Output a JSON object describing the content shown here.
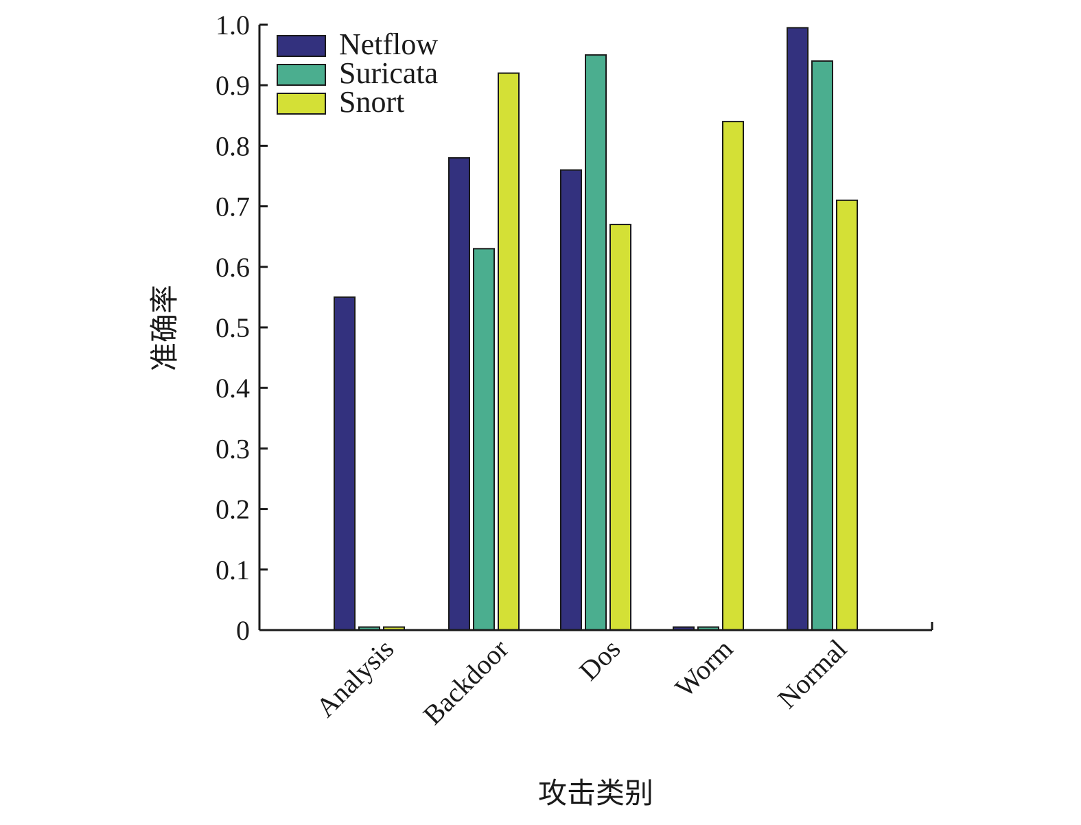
{
  "chart_data": {
    "type": "bar",
    "title": "",
    "xlabel": "攻击类别",
    "ylabel": "准确率",
    "categories": [
      "Analysis",
      "Backdoor",
      "Dos",
      "Worm",
      "Normal"
    ],
    "series": [
      {
        "name": "Netflow",
        "color": "#33317e",
        "values": [
          0.55,
          0.78,
          0.76,
          0.005,
          0.995
        ]
      },
      {
        "name": "Suricata",
        "color": "#4bae8f",
        "values": [
          0.005,
          0.63,
          0.95,
          0.005,
          0.94
        ]
      },
      {
        "name": "Snort",
        "color": "#d4e036",
        "values": [
          0.005,
          0.92,
          0.67,
          0.84,
          0.71
        ]
      }
    ],
    "ylim": [
      0,
      1.0
    ],
    "yticks": [
      "0",
      "0.1",
      "0.2",
      "0.3",
      "0.4",
      "0.5",
      "0.6",
      "0.7",
      "0.8",
      "0.9",
      "1.0"
    ],
    "grid": false,
    "legend": "top-left"
  }
}
